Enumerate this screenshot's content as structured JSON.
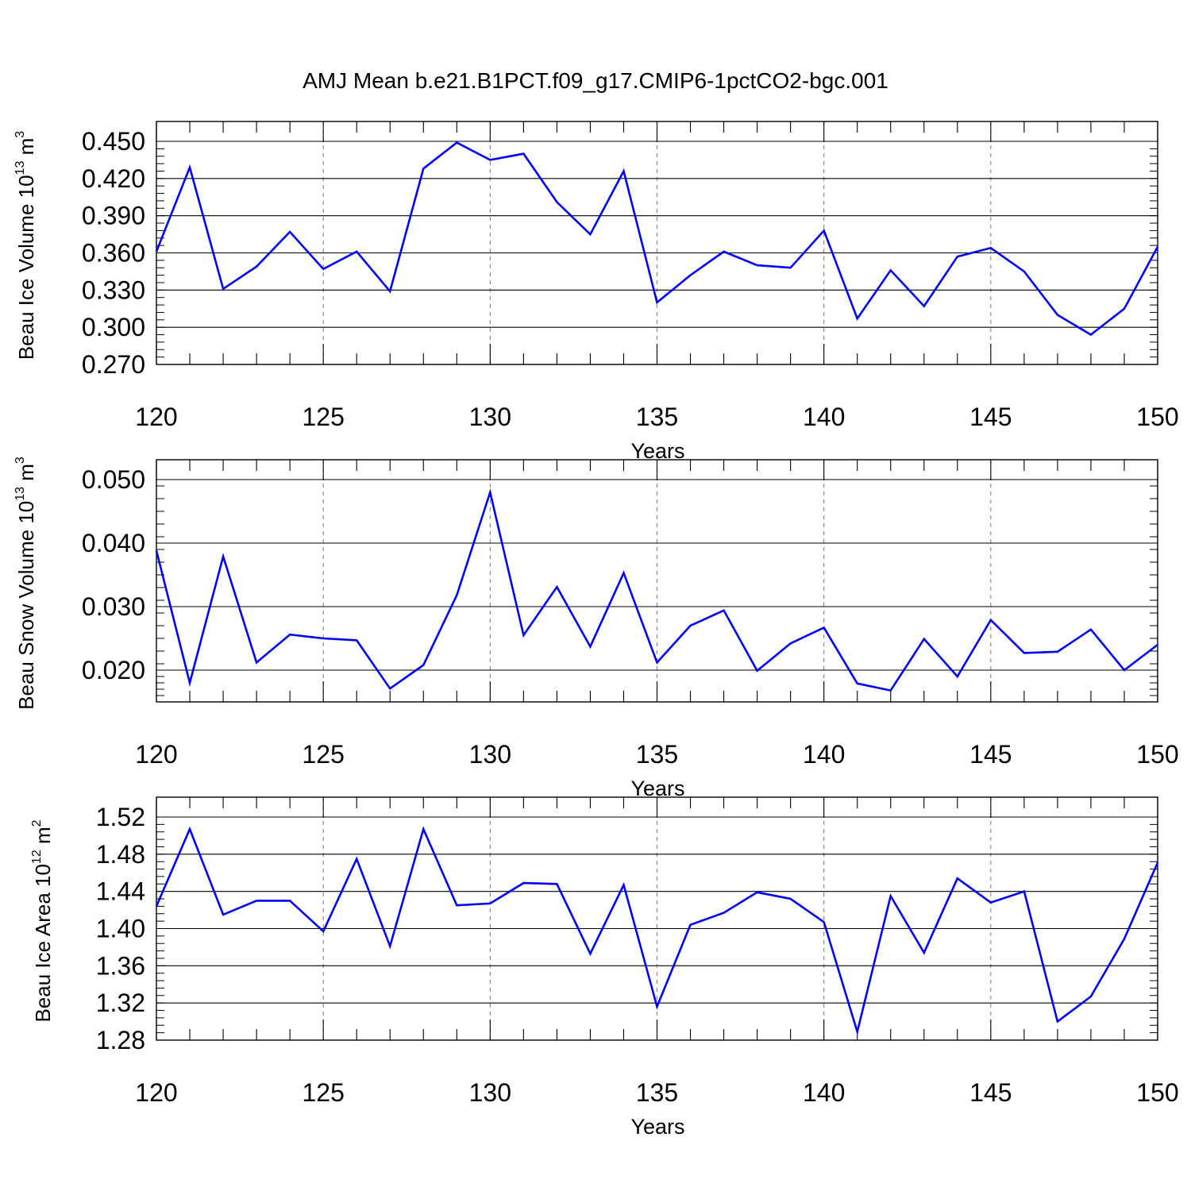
{
  "figure": {
    "title": "AMJ Mean b.e21.B1PCT.f09_g17.CMIP6-1pctCO2-bgc.001"
  },
  "colors": {
    "line": "#0000ff",
    "axis": "#000000",
    "grid": "#8c8c8c"
  },
  "chart_data": [
    {
      "type": "line",
      "ylabel": "Beau Ice Volume 10",
      "ylabel_sup": "13",
      "ylabel_unit": " m",
      "ylabel_unit_sup": "3",
      "xlabel": "Years",
      "xlim": [
        120,
        150
      ],
      "ylim": [
        0.27,
        0.45
      ],
      "xticks": [
        "120",
        "125",
        "130",
        "135",
        "140",
        "145",
        "150"
      ],
      "yticks": [
        "0.270",
        "0.300",
        "0.330",
        "0.360",
        "0.390",
        "0.420",
        "0.450"
      ],
      "x": [
        120,
        121,
        122,
        123,
        124,
        125,
        126,
        127,
        128,
        129,
        130,
        131,
        132,
        133,
        134,
        135,
        136,
        137,
        138,
        139,
        140,
        141,
        142,
        143,
        144,
        145,
        146,
        147,
        148,
        149,
        150
      ],
      "values": [
        0.361,
        0.429,
        0.331,
        0.349,
        0.377,
        0.347,
        0.361,
        0.329,
        0.428,
        0.449,
        0.435,
        0.44,
        0.401,
        0.375,
        0.426,
        0.32,
        0.342,
        0.361,
        0.35,
        0.348,
        0.378,
        0.307,
        0.346,
        0.317,
        0.357,
        0.364,
        0.345,
        0.31,
        0.294,
        0.315,
        0.365
      ]
    },
    {
      "type": "line",
      "ylabel": "Beau Snow Volume 10",
      "ylabel_sup": "13",
      "ylabel_unit": " m",
      "ylabel_unit_sup": "3",
      "xlabel": "Years",
      "xlim": [
        120,
        150
      ],
      "ylim": [
        0.015,
        0.05
      ],
      "xticks": [
        "120",
        "125",
        "130",
        "135",
        "140",
        "145",
        "150"
      ],
      "yticks": [
        "0.020",
        "0.030",
        "0.040",
        "0.050"
      ],
      "x": [
        120,
        121,
        122,
        123,
        124,
        125,
        126,
        127,
        128,
        129,
        130,
        131,
        132,
        133,
        134,
        135,
        136,
        137,
        138,
        139,
        140,
        141,
        142,
        143,
        144,
        145,
        146,
        147,
        148,
        149,
        150
      ],
      "values": [
        0.0388,
        0.018,
        0.0379,
        0.0212,
        0.0256,
        0.025,
        0.0247,
        0.0171,
        0.0208,
        0.0318,
        0.048,
        0.0255,
        0.0331,
        0.0237,
        0.0353,
        0.0212,
        0.027,
        0.0294,
        0.0199,
        0.0242,
        0.0267,
        0.0179,
        0.0168,
        0.0249,
        0.019,
        0.0279,
        0.0227,
        0.0229,
        0.0264,
        0.02,
        0.024
      ]
    },
    {
      "type": "line",
      "ylabel": "Beau Ice Area 10",
      "ylabel_sup": "12",
      "ylabel_unit": " m",
      "ylabel_unit_sup": "2",
      "xlabel": "Years",
      "xlim": [
        120,
        150
      ],
      "ylim": [
        1.28,
        1.52
      ],
      "xticks": [
        "120",
        "125",
        "130",
        "135",
        "140",
        "145",
        "150"
      ],
      "yticks": [
        "1.28",
        "1.32",
        "1.36",
        "1.40",
        "1.44",
        "1.48",
        "1.52"
      ],
      "x": [
        120,
        121,
        122,
        123,
        124,
        125,
        126,
        127,
        128,
        129,
        130,
        131,
        132,
        133,
        134,
        135,
        136,
        137,
        138,
        139,
        140,
        141,
        142,
        143,
        144,
        145,
        146,
        147,
        148,
        149,
        150
      ],
      "values": [
        1.424,
        1.507,
        1.415,
        1.43,
        1.43,
        1.397,
        1.475,
        1.381,
        1.507,
        1.425,
        1.427,
        1.449,
        1.448,
        1.373,
        1.447,
        1.316,
        1.404,
        1.417,
        1.439,
        1.432,
        1.407,
        1.289,
        1.435,
        1.374,
        1.454,
        1.428,
        1.44,
        1.3,
        1.327,
        1.389,
        1.471
      ]
    }
  ]
}
